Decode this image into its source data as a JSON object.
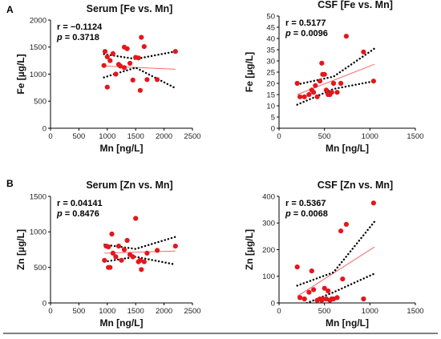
{
  "figure": {
    "panel_letters": [
      "A",
      "B"
    ]
  },
  "colors": {
    "points": "#e3171c",
    "fit_line": "#f26a6a",
    "ci_line": "#000000",
    "axis": "#000000"
  },
  "chart_data": [
    {
      "type": "scatter",
      "title": "Serum [Fe vs. Mn]",
      "xlabel": "Mn [ng/L]",
      "ylabel": "Fe [µg/L]",
      "xlim": [
        0,
        2500
      ],
      "ylim": [
        0,
        2000
      ],
      "xticks": [
        0,
        500,
        1000,
        1500,
        2000,
        2500
      ],
      "yticks": [
        0,
        500,
        1000,
        1500,
        2000
      ],
      "stats": {
        "r_label": "r = −0.1124",
        "p_prefix": "p",
        "p_value": " = 0.3718"
      },
      "points": [
        [
          960,
          1420
        ],
        [
          1000,
          1320
        ],
        [
          1050,
          1250
        ],
        [
          1100,
          1380
        ],
        [
          1150,
          1000
        ],
        [
          1200,
          1180
        ],
        [
          1230,
          1150
        ],
        [
          1300,
          1500
        ],
        [
          1350,
          1470
        ],
        [
          1400,
          1200
        ],
        [
          1450,
          890
        ],
        [
          1500,
          1310
        ],
        [
          1550,
          1300
        ],
        [
          1600,
          1680
        ],
        [
          1650,
          1510
        ],
        [
          1700,
          900
        ],
        [
          1880,
          900
        ],
        [
          2200,
          1420
        ],
        [
          1000,
          760
        ],
        [
          1580,
          700
        ],
        [
          1300,
          1120
        ],
        [
          940,
          1160
        ]
      ],
      "fit": [
        [
          940,
          1150
        ],
        [
          2200,
          1090
        ]
      ],
      "ci_upper": [
        [
          940,
          1370
        ],
        [
          1500,
          1280
        ],
        [
          2200,
          1420
        ]
      ],
      "ci_lower": [
        [
          940,
          940
        ],
        [
          1500,
          1120
        ],
        [
          2200,
          740
        ]
      ]
    },
    {
      "type": "scatter",
      "title": "CSF [Fe vs. Mn]",
      "xlabel": "Mn [ng/L]",
      "ylabel": "Fe [µg/L]",
      "xlim": [
        0,
        1500
      ],
      "ylim": [
        0,
        50
      ],
      "xticks": [
        0,
        500,
        1000,
        1500
      ],
      "yticks": [
        0,
        5,
        10,
        15,
        20,
        25,
        30,
        35,
        40,
        45,
        50
      ],
      "stats": {
        "r_label": "r = 0.5177",
        "p_prefix": "p",
        "p_value": " = 0.0096"
      },
      "points": [
        [
          200,
          20
        ],
        [
          230,
          14
        ],
        [
          280,
          14
        ],
        [
          330,
          15
        ],
        [
          360,
          17
        ],
        [
          380,
          16
        ],
        [
          420,
          14
        ],
        [
          450,
          21
        ],
        [
          470,
          29
        ],
        [
          480,
          24
        ],
        [
          500,
          24
        ],
        [
          520,
          17
        ],
        [
          540,
          15
        ],
        [
          560,
          15
        ],
        [
          580,
          16
        ],
        [
          600,
          20
        ],
        [
          640,
          16
        ],
        [
          680,
          20
        ],
        [
          740,
          41
        ],
        [
          930,
          34
        ],
        [
          1040,
          21
        ],
        [
          400,
          19
        ]
      ],
      "fit": [
        [
          200,
          15
        ],
        [
          1050,
          28.5
        ]
      ],
      "ci_upper": [
        [
          200,
          19.5
        ],
        [
          600,
          23
        ],
        [
          1050,
          35.5
        ]
      ],
      "ci_lower": [
        [
          200,
          10.5
        ],
        [
          600,
          17.5
        ],
        [
          1050,
          21
        ]
      ]
    },
    {
      "type": "scatter",
      "title": "Serum [Zn vs. Mn]",
      "xlabel": "Mn [ng/L]",
      "ylabel": "Zn [µg/L]",
      "xlim": [
        0,
        2500
      ],
      "ylim": [
        0,
        1500
      ],
      "xticks": [
        0,
        500,
        1000,
        1500,
        2000,
        2500
      ],
      "yticks": [
        0,
        500,
        1000,
        1500
      ],
      "stats": {
        "r_label": "r = 0.04141",
        "p_prefix": "p",
        "p_value": " = 0.8476"
      },
      "points": [
        [
          950,
          600
        ],
        [
          980,
          800
        ],
        [
          1020,
          790
        ],
        [
          1050,
          500
        ],
        [
          1080,
          970
        ],
        [
          1100,
          700
        ],
        [
          1150,
          650
        ],
        [
          1200,
          800
        ],
        [
          1250,
          600
        ],
        [
          1300,
          750
        ],
        [
          1350,
          880
        ],
        [
          1400,
          680
        ],
        [
          1450,
          650
        ],
        [
          1500,
          1190
        ],
        [
          1550,
          580
        ],
        [
          1600,
          470
        ],
        [
          1650,
          580
        ],
        [
          1700,
          700
        ],
        [
          1880,
          740
        ],
        [
          2200,
          800
        ],
        [
          1020,
          500
        ],
        [
          1580,
          600
        ]
      ],
      "fit": [
        [
          950,
          700
        ],
        [
          2200,
          730
        ]
      ],
      "ci_upper": [
        [
          950,
          820
        ],
        [
          1500,
          760
        ],
        [
          2200,
          930
        ]
      ],
      "ci_lower": [
        [
          950,
          580
        ],
        [
          1500,
          650
        ],
        [
          2200,
          540
        ]
      ]
    },
    {
      "type": "scatter",
      "title": "CSF [Zn vs. Mn]",
      "xlabel": "Mn [ng/L]",
      "ylabel": "Zn [µg/L]",
      "xlim": [
        0,
        1500
      ],
      "ylim": [
        0,
        400
      ],
      "xticks": [
        0,
        500,
        1000,
        1500
      ],
      "yticks": [
        0,
        100,
        200,
        300,
        400
      ],
      "stats": {
        "r_label": "r = 0.5367",
        "p_prefix": "p",
        "p_value": " = 0.0068"
      },
      "points": [
        [
          200,
          135
        ],
        [
          230,
          20
        ],
        [
          280,
          15
        ],
        [
          330,
          40
        ],
        [
          360,
          120
        ],
        [
          380,
          50
        ],
        [
          420,
          10
        ],
        [
          450,
          15
        ],
        [
          470,
          10
        ],
        [
          480,
          15
        ],
        [
          500,
          55
        ],
        [
          520,
          15
        ],
        [
          540,
          45
        ],
        [
          560,
          10
        ],
        [
          580,
          15
        ],
        [
          600,
          15
        ],
        [
          640,
          20
        ],
        [
          680,
          270
        ],
        [
          700,
          90
        ],
        [
          740,
          295
        ],
        [
          930,
          15
        ],
        [
          1040,
          375
        ]
      ],
      "fit": [
        [
          200,
          25
        ],
        [
          1050,
          210
        ]
      ],
      "ci_upper": [
        [
          200,
          65
        ],
        [
          600,
          115
        ],
        [
          1050,
          305
        ]
      ],
      "ci_lower": [
        [
          200,
          -15
        ],
        [
          600,
          40
        ],
        [
          1050,
          110
        ]
      ]
    }
  ]
}
